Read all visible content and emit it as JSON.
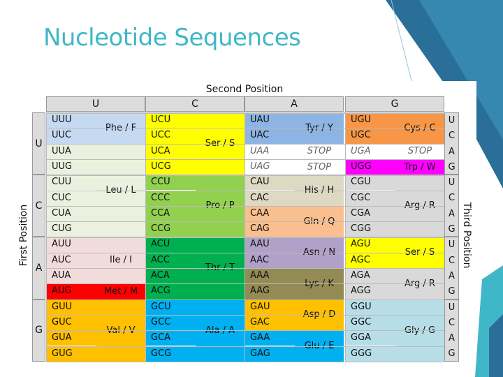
{
  "slide": {
    "title": "Nucleotide Sequences",
    "accent": "#3fb7c9"
  },
  "table": {
    "header_top": "Second Position",
    "header_left": "First Position",
    "header_right": "Third Position",
    "second_positions": [
      "U",
      "C",
      "A",
      "G"
    ],
    "first_positions": [
      "U",
      "C",
      "A",
      "G"
    ],
    "third_positions": [
      "U",
      "C",
      "A",
      "G",
      "U",
      "C",
      "A",
      "G",
      "U",
      "C",
      "A",
      "G",
      "U",
      "C",
      "A",
      "G"
    ],
    "codon_columns": [
      [
        "UUU",
        "UUC",
        "UUA",
        "UUG",
        "CUU",
        "CUC",
        "CUA",
        "CUG",
        "AUU",
        "AUC",
        "AUA",
        "AUG",
        "GUU",
        "GUC",
        "GUA",
        "GUG"
      ],
      [
        "UCU",
        "UCC",
        "UCA",
        "UCG",
        "CCU",
        "CCC",
        "CCA",
        "CCG",
        "ACU",
        "ACC",
        "ACA",
        "ACG",
        "GCU",
        "GCC",
        "GCA",
        "GCG"
      ],
      [
        "UAU",
        "UAC",
        "UAA",
        "UAG",
        "CAU",
        "CAC",
        "CAA",
        "CAG",
        "AAU",
        "AAC",
        "AAA",
        "AAG",
        "GAU",
        "GAC",
        "GAA",
        "GAG"
      ],
      [
        "UGU",
        "UGC",
        "UGA",
        "UGG",
        "CGU",
        "CGC",
        "CGA",
        "CGG",
        "AGU",
        "AGC",
        "AGA",
        "AGG",
        "GGU",
        "GGC",
        "GGA",
        "GGG"
      ]
    ],
    "amino_acids": [
      {
        "col": 0,
        "start": 0,
        "span": 2,
        "label": "Phe / F",
        "color": "#c5d9f1"
      },
      {
        "col": 0,
        "start": 2,
        "span": 6,
        "label": "Leu / L",
        "color": "#ebf1de"
      },
      {
        "col": 0,
        "start": 8,
        "span": 3,
        "label": "Ile / I",
        "color": "#f2dcdb"
      },
      {
        "col": 0,
        "start": 11,
        "span": 1,
        "label": "Met / M",
        "color": "#ff0000"
      },
      {
        "col": 0,
        "start": 12,
        "span": 4,
        "label": "Val / V",
        "color": "#ffc000"
      },
      {
        "col": 1,
        "start": 0,
        "span": 4,
        "label": "Ser / S",
        "color": "#ffff00"
      },
      {
        "col": 1,
        "start": 4,
        "span": 4,
        "label": "Pro / P",
        "color": "#92d050"
      },
      {
        "col": 1,
        "start": 8,
        "span": 4,
        "label": "Thr / T",
        "color": "#00b050"
      },
      {
        "col": 1,
        "start": 12,
        "span": 4,
        "label": "Ala / A",
        "color": "#00b0f0"
      },
      {
        "col": 2,
        "start": 0,
        "span": 2,
        "label": "Tyr / Y",
        "color": "#8db4e2"
      },
      {
        "col": 2,
        "start": 2,
        "span": 1,
        "label": "STOP",
        "color": "#ffffff",
        "stop": true
      },
      {
        "col": 2,
        "start": 3,
        "span": 1,
        "label": "STOP",
        "color": "#ffffff",
        "stop": true
      },
      {
        "col": 2,
        "start": 4,
        "span": 2,
        "label": "His / H",
        "color": "#ddd9c3"
      },
      {
        "col": 2,
        "start": 6,
        "span": 2,
        "label": "Gln / Q",
        "color": "#fabf8f"
      },
      {
        "col": 2,
        "start": 8,
        "span": 2,
        "label": "Asn / N",
        "color": "#b1a0c7"
      },
      {
        "col": 2,
        "start": 10,
        "span": 2,
        "label": "Lys / K",
        "color": "#948a54"
      },
      {
        "col": 2,
        "start": 12,
        "span": 2,
        "label": "Asp / D",
        "color": "#ffc000"
      },
      {
        "col": 2,
        "start": 14,
        "span": 2,
        "label": "Glu / E",
        "color": "#00b0f0"
      },
      {
        "col": 3,
        "start": 0,
        "span": 2,
        "label": "Cys / C",
        "color": "#f79646"
      },
      {
        "col": 3,
        "start": 2,
        "span": 1,
        "label": "STOP",
        "color": "#ffffff",
        "stop": true
      },
      {
        "col": 3,
        "start": 3,
        "span": 1,
        "label": "Trp / W",
        "color": "#ff00ff"
      },
      {
        "col": 3,
        "start": 4,
        "span": 4,
        "label": "Arg / R",
        "color": "#d9d9d9"
      },
      {
        "col": 3,
        "start": 8,
        "span": 2,
        "label": "Ser / S",
        "color": "#ffff00"
      },
      {
        "col": 3,
        "start": 10,
        "span": 2,
        "label": "Arg / R",
        "color": "#d9d9d9"
      },
      {
        "col": 3,
        "start": 12,
        "span": 4,
        "label": "Gly / G",
        "color": "#b7dee8"
      }
    ]
  }
}
